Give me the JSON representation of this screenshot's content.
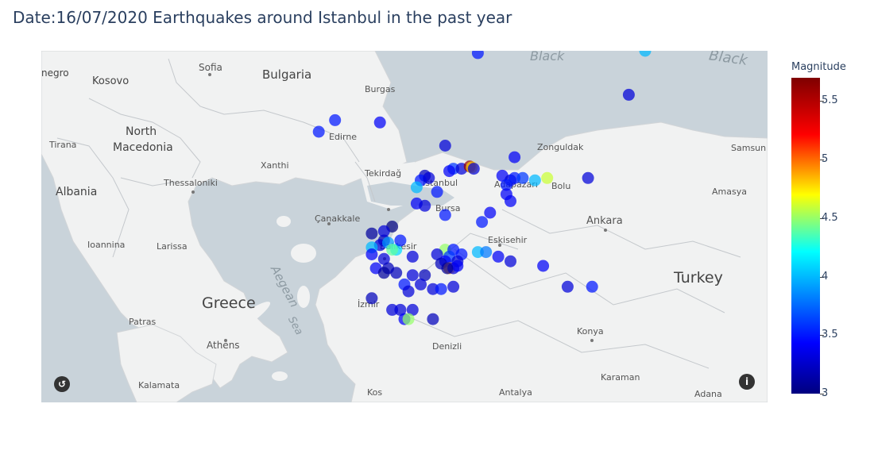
{
  "title": "Date:16/07/2020 Earthquakes around Istanbul in the past year",
  "colorbar": {
    "title": "Magnitude",
    "min": 3,
    "max": 5.7,
    "ticks": [
      3,
      3.5,
      4,
      4.5,
      5,
      5.5
    ],
    "tick_labels": [
      "3",
      "3.5",
      "4",
      "4.5",
      "5",
      "5.5"
    ],
    "colorscale": [
      "#00007f",
      "#0000ff",
      "#00ffff",
      "#ffff00",
      "#ff0000",
      "#7f0000"
    ]
  },
  "map_labels": {
    "countries": [
      "Bulgaria",
      "North",
      "Macedonia",
      "Kosovo",
      "Albania",
      "Greece",
      "Turkey",
      "negro"
    ],
    "cities": [
      "Sofia",
      "Burgas",
      "Edirne",
      "Tirana",
      "Xanthi",
      "Tekirdağ",
      "İstanbul",
      "Adapazarı",
      "Zonguldak",
      "Samsun",
      "Bolu",
      "Amasya",
      "Thessaloniki",
      "Çanakkale",
      "Bursa",
      "Ankara",
      "Ioannina",
      "Larissa",
      "Balıkesir",
      "Eskisehir",
      "Patras",
      "Athens",
      "İzmir",
      "Konya",
      "Denizli",
      "Karaman",
      "Kalamata",
      "Kos",
      "Antalya",
      "Adana"
    ],
    "seas": [
      "Black",
      "Black",
      "Aegean",
      "Sea"
    ]
  },
  "chart_data": {
    "type": "scatter",
    "x_label": "longitude",
    "y_label": "latitude",
    "lon_range": [
      18.4,
      36.2
    ],
    "lat_range": [
      35.9,
      43.5
    ],
    "points": [
      [
        29.1,
        43.45,
        3.5
      ],
      [
        33.2,
        43.5,
        4.0
      ],
      [
        32.8,
        42.55,
        3.3
      ],
      [
        25.2,
        41.75,
        3.5
      ],
      [
        26.7,
        41.95,
        3.4
      ],
      [
        28.3,
        41.45,
        3.3
      ],
      [
        30.0,
        41.2,
        3.4
      ],
      [
        28.5,
        40.95,
        3.6
      ],
      [
        28.7,
        40.95,
        3.3
      ],
      [
        28.9,
        41.0,
        5.6
      ],
      [
        28.95,
        40.98,
        4.8
      ],
      [
        29.0,
        40.95,
        3.3
      ],
      [
        28.4,
        40.9,
        3.4
      ],
      [
        27.8,
        40.8,
        3.2
      ],
      [
        27.7,
        40.7,
        3.5
      ],
      [
        27.9,
        40.75,
        3.3
      ],
      [
        29.7,
        40.8,
        3.4
      ],
      [
        29.9,
        40.7,
        3.3
      ],
      [
        30.0,
        40.75,
        3.5
      ],
      [
        30.2,
        40.75,
        3.6
      ],
      [
        29.8,
        40.6,
        3.5
      ],
      [
        30.5,
        40.7,
        4.0
      ],
      [
        30.8,
        40.75,
        4.6
      ],
      [
        31.8,
        40.75,
        3.3
      ],
      [
        27.6,
        40.55,
        4.0
      ],
      [
        28.1,
        40.45,
        3.5
      ],
      [
        27.6,
        40.2,
        3.4
      ],
      [
        27.8,
        40.15,
        3.3
      ],
      [
        29.8,
        40.4,
        3.4
      ],
      [
        29.9,
        40.25,
        3.4
      ],
      [
        29.4,
        40.0,
        3.4
      ],
      [
        28.3,
        39.95,
        3.5
      ],
      [
        29.2,
        39.8,
        3.5
      ],
      [
        27.0,
        39.7,
        3.0
      ],
      [
        26.5,
        39.55,
        3.1
      ],
      [
        26.8,
        39.4,
        3.2
      ],
      [
        26.7,
        39.3,
        3.3
      ],
      [
        26.9,
        39.35,
        3.9
      ],
      [
        26.5,
        39.25,
        4.0
      ],
      [
        27.1,
        39.2,
        4.1
      ],
      [
        27.0,
        39.2,
        4.4
      ],
      [
        26.8,
        39.0,
        3.3
      ],
      [
        26.5,
        39.1,
        3.4
      ],
      [
        27.5,
        39.05,
        3.3
      ],
      [
        28.3,
        39.2,
        4.5
      ],
      [
        28.1,
        39.1,
        3.3
      ],
      [
        28.5,
        39.2,
        3.5
      ],
      [
        28.7,
        39.1,
        3.5
      ],
      [
        28.4,
        39.05,
        3.6
      ],
      [
        28.3,
        38.95,
        3.4
      ],
      [
        28.6,
        38.95,
        3.3
      ],
      [
        28.2,
        38.9,
        3.2
      ],
      [
        28.4,
        38.8,
        4.9
      ],
      [
        28.5,
        38.8,
        3.3
      ],
      [
        28.6,
        38.85,
        3.4
      ],
      [
        28.35,
        38.8,
        3.1
      ],
      [
        29.1,
        39.15,
        4.0
      ],
      [
        29.3,
        39.15,
        3.8
      ],
      [
        29.6,
        39.05,
        3.4
      ],
      [
        29.9,
        38.95,
        3.3
      ],
      [
        30.7,
        38.85,
        3.4
      ],
      [
        26.6,
        38.8,
        3.4
      ],
      [
        26.9,
        38.8,
        3.2
      ],
      [
        26.8,
        38.7,
        3.1
      ],
      [
        27.1,
        38.7,
        3.2
      ],
      [
        27.5,
        38.65,
        3.3
      ],
      [
        27.8,
        38.65,
        3.2
      ],
      [
        27.7,
        38.45,
        3.3
      ],
      [
        27.3,
        38.45,
        3.5
      ],
      [
        27.4,
        38.3,
        3.3
      ],
      [
        28.0,
        38.35,
        3.3
      ],
      [
        28.2,
        38.35,
        3.5
      ],
      [
        28.5,
        38.4,
        3.3
      ],
      [
        31.3,
        38.4,
        3.3
      ],
      [
        31.9,
        38.4,
        3.5
      ],
      [
        26.5,
        38.15,
        3.2
      ],
      [
        27.0,
        37.9,
        3.3
      ],
      [
        27.2,
        37.9,
        3.3
      ],
      [
        27.5,
        37.9,
        3.3
      ],
      [
        27.3,
        37.7,
        3.4
      ],
      [
        27.4,
        37.7,
        4.5
      ],
      [
        28.0,
        37.7,
        3.2
      ],
      [
        25.6,
        42.0,
        3.5
      ],
      [
        26.8,
        39.6,
        3.3
      ],
      [
        27.2,
        39.4,
        3.5
      ]
    ]
  }
}
